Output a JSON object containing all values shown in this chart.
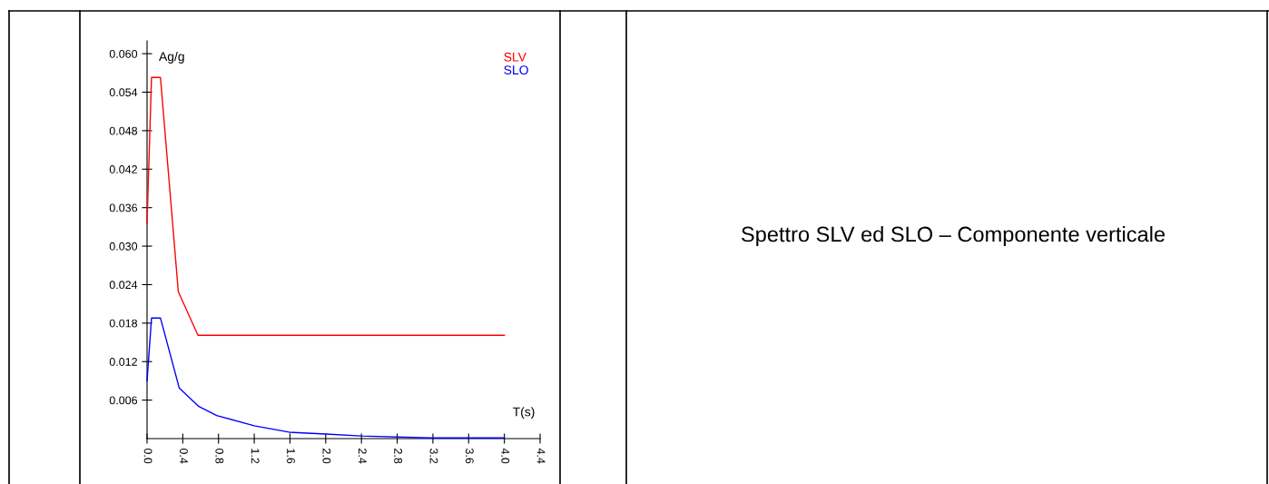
{
  "chart_data": {
    "type": "line",
    "xlabel": "T(s)",
    "ylabel": "Ag/g",
    "annotations": [
      "Spettro SLV ed SLO – Componente verticale"
    ],
    "xlim": [
      0,
      4.4
    ],
    "xticks": [
      {
        "value": 0,
        "label": "0.0"
      },
      0.4,
      0.8,
      1.2,
      1.6,
      {
        "value": 2,
        "label": "2.0"
      },
      2.4,
      2.8,
      3.2,
      3.6,
      {
        "value": 4,
        "label": "4.0"
      },
      4.4
    ],
    "ylim": [
      0,
      0.062
    ],
    "yticks": [
      {
        "value": 0.006,
        "label": "0.006"
      },
      {
        "value": 0.012,
        "label": "0.012"
      },
      {
        "value": 0.018,
        "label": "0.018"
      },
      {
        "value": 0.024,
        "label": "0.024"
      },
      {
        "value": 0.03,
        "label": "0.030"
      },
      {
        "value": 0.036,
        "label": "0.036"
      },
      {
        "value": 0.042,
        "label": "0.042"
      },
      {
        "value": 0.048,
        "label": "0.048"
      },
      {
        "value": 0.054,
        "label": "0.054"
      },
      {
        "value": 0.06,
        "label": "0.060"
      }
    ],
    "grid": false,
    "legend": "top right",
    "marker": "none",
    "line_style": "solid",
    "series": [
      {
        "name": "SLV",
        "color": "#ff0000",
        "x": [
          0,
          0.05,
          0.15,
          0.35,
          0.57,
          4.0
        ],
        "values": [
          0.0336,
          0.0563,
          0.0563,
          0.0229,
          0.0161,
          0.0161
        ]
      },
      {
        "name": "SLO",
        "color": "#0000ff",
        "x": [
          0,
          0.05,
          0.15,
          0.36,
          0.58,
          0.78,
          1.2,
          1.59,
          2.0,
          2.4,
          3.18,
          4.0
        ],
        "values": [
          0.009,
          0.0188,
          0.0188,
          0.0079,
          0.005,
          0.0036,
          0.002,
          0.001,
          0.0007,
          0.0004,
          0.0001,
          0.0001
        ]
      }
    ]
  }
}
